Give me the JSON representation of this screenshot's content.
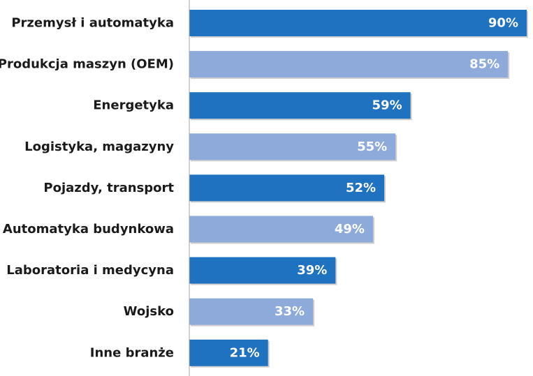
{
  "chart_data": {
    "type": "bar",
    "orientation": "horizontal",
    "categories": [
      "Przemysł i automatyka",
      "Produkcja maszyn (OEM)",
      "Energetyka",
      "Logistyka, magazyny",
      "Pojazdy, transport",
      "Automatyka budynkowa",
      "Laboratoria i medycyna",
      "Wojsko",
      "Inne branże"
    ],
    "values": [
      90,
      85,
      59,
      55,
      52,
      49,
      39,
      33,
      21
    ],
    "value_labels": [
      "90%",
      "85%",
      "59%",
      "55%",
      "52%",
      "49%",
      "39%",
      "33%",
      "21%"
    ],
    "unit": "%",
    "xlim": [
      0,
      90
    ],
    "title": "",
    "xlabel": "",
    "ylabel": "",
    "grid": false,
    "legend": "none",
    "colors": {
      "primary": "#1f72bf",
      "secondary": "#8eaadb",
      "axis": "#a6a6a6",
      "label_text": "#1a1a1a",
      "value_text": "#ffffff"
    },
    "color_pattern": [
      "primary",
      "secondary"
    ]
  }
}
